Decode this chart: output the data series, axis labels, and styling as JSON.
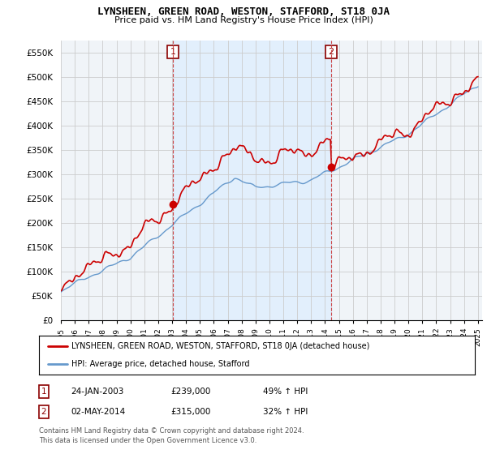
{
  "title": "LYNSHEEN, GREEN ROAD, WESTON, STAFFORD, ST18 0JA",
  "subtitle": "Price paid vs. HM Land Registry's House Price Index (HPI)",
  "legend_line1": "LYNSHEEN, GREEN ROAD, WESTON, STAFFORD, ST18 0JA (detached house)",
  "legend_line2": "HPI: Average price, detached house, Stafford",
  "annotation1": {
    "num": "1",
    "date": "24-JAN-2003",
    "price": "£239,000",
    "hpi": "49% ↑ HPI"
  },
  "annotation2": {
    "num": "2",
    "date": "02-MAY-2014",
    "price": "£315,000",
    "hpi": "32% ↑ HPI"
  },
  "footnote1": "Contains HM Land Registry data © Crown copyright and database right 2024.",
  "footnote2": "This data is licensed under the Open Government Licence v3.0.",
  "hpi_color": "#6699cc",
  "price_color": "#cc0000",
  "shade_color": "#ddeeff",
  "vline_color": "#cc4444",
  "ylim": [
    0,
    575000
  ],
  "yticks": [
    0,
    50000,
    100000,
    150000,
    200000,
    250000,
    300000,
    350000,
    400000,
    450000,
    500000,
    550000
  ],
  "background_color": "#ffffff",
  "plot_bg_color": "#f0f4f8",
  "grid_color": "#cccccc",
  "marker1_x": 2003.07,
  "marker1_y": 239000,
  "marker2_x": 2014.42,
  "marker2_y": 315000,
  "xlim_left": 1995.0,
  "xlim_right": 2025.3
}
